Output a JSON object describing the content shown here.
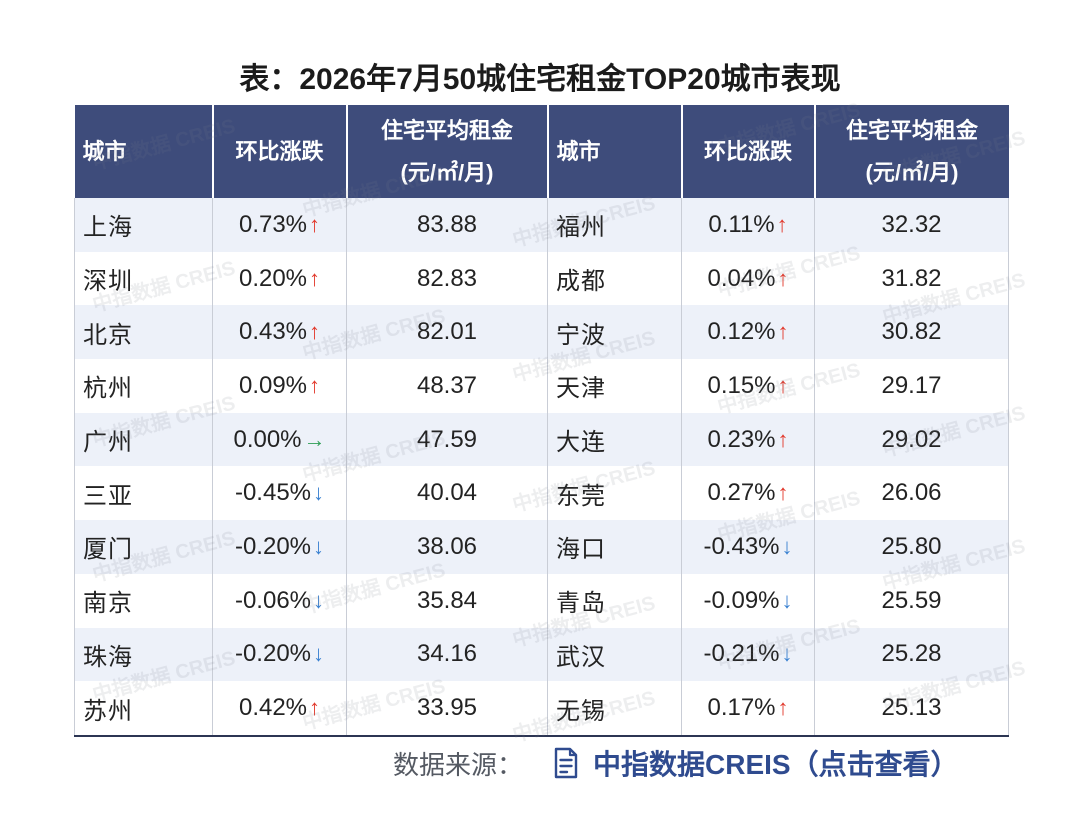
{
  "title": "表：2026年7月50城住宅租金TOP20城市表现",
  "table": {
    "headers": {
      "city": "城市",
      "change": "环比涨跌",
      "rent_line1": "住宅平均租金",
      "rent_line2": "(元/㎡/月)"
    },
    "rows": [
      {
        "left": {
          "city": "上海",
          "change": "0.73%",
          "arrow": "↑",
          "arrow_icon": "arrow-up-icon",
          "rent": "83.88"
        },
        "right": {
          "city": "福州",
          "change": "0.11%",
          "arrow": "↑",
          "arrow_icon": "arrow-up-icon",
          "rent": "32.32"
        }
      },
      {
        "left": {
          "city": "深圳",
          "change": "0.20%",
          "arrow": "↑",
          "arrow_icon": "arrow-up-icon",
          "rent": "82.83"
        },
        "right": {
          "city": "成都",
          "change": "0.04%",
          "arrow": "↑",
          "arrow_icon": "arrow-up-icon",
          "rent": "31.82"
        }
      },
      {
        "left": {
          "city": "北京",
          "change": "0.43%",
          "arrow": "↑",
          "arrow_icon": "arrow-up-icon",
          "rent": "82.01"
        },
        "right": {
          "city": "宁波",
          "change": "0.12%",
          "arrow": "↑",
          "arrow_icon": "arrow-up-icon",
          "rent": "30.82"
        }
      },
      {
        "left": {
          "city": "杭州",
          "change": "0.09%",
          "arrow": "↑",
          "arrow_icon": "arrow-up-icon",
          "rent": "48.37"
        },
        "right": {
          "city": "天津",
          "change": "0.15%",
          "arrow": "↑",
          "arrow_icon": "arrow-up-icon",
          "rent": "29.17"
        }
      },
      {
        "left": {
          "city": "广州",
          "change": "0.00%",
          "arrow": "→",
          "arrow_icon": "arrow-right-icon",
          "rent": "47.59"
        },
        "right": {
          "city": "大连",
          "change": "0.23%",
          "arrow": "↑",
          "arrow_icon": "arrow-up-icon",
          "rent": "29.02"
        }
      },
      {
        "left": {
          "city": "三亚",
          "change": "-0.45%",
          "arrow": "↓",
          "arrow_icon": "arrow-down-icon",
          "rent": "40.04"
        },
        "right": {
          "city": "东莞",
          "change": "0.27%",
          "arrow": "↑",
          "arrow_icon": "arrow-up-icon",
          "rent": "26.06"
        }
      },
      {
        "left": {
          "city": "厦门",
          "change": "-0.20%",
          "arrow": "↓",
          "arrow_icon": "arrow-down-icon",
          "rent": "38.06"
        },
        "right": {
          "city": "海口",
          "change": "-0.43%",
          "arrow": "↓",
          "arrow_icon": "arrow-down-icon",
          "rent": "25.80"
        }
      },
      {
        "left": {
          "city": "南京",
          "change": "-0.06%",
          "arrow": "↓",
          "arrow_icon": "arrow-down-icon",
          "rent": "35.84"
        },
        "right": {
          "city": "青岛",
          "change": "-0.09%",
          "arrow": "↓",
          "arrow_icon": "arrow-down-icon",
          "rent": "25.59"
        }
      },
      {
        "left": {
          "city": "珠海",
          "change": "-0.20%",
          "arrow": "↓",
          "arrow_icon": "arrow-down-icon",
          "rent": "34.16"
        },
        "right": {
          "city": "武汉",
          "change": "-0.21%",
          "arrow": "↓",
          "arrow_icon": "arrow-down-icon",
          "rent": "25.28"
        }
      },
      {
        "left": {
          "city": "苏州",
          "change": "0.42%",
          "arrow": "↑",
          "arrow_icon": "arrow-up-icon",
          "rent": "33.95"
        },
        "right": {
          "city": "无锡",
          "change": "0.17%",
          "arrow": "↑",
          "arrow_icon": "arrow-up-icon",
          "rent": "25.13"
        }
      }
    ]
  },
  "source": {
    "label": "数据来源：",
    "icon": "document-icon",
    "link": "中指数据CREIS（点击查看）"
  },
  "watermark": "中指数据 CREIS",
  "colors": {
    "header_bg": "#3e4c7b",
    "row_alt_bg": "#edf1f9",
    "link": "#2f4b8f",
    "arrow-up-icon": "#e23b2e",
    "arrow-right-icon": "#2e9e55",
    "arrow-down-icon": "#3b82d1"
  }
}
